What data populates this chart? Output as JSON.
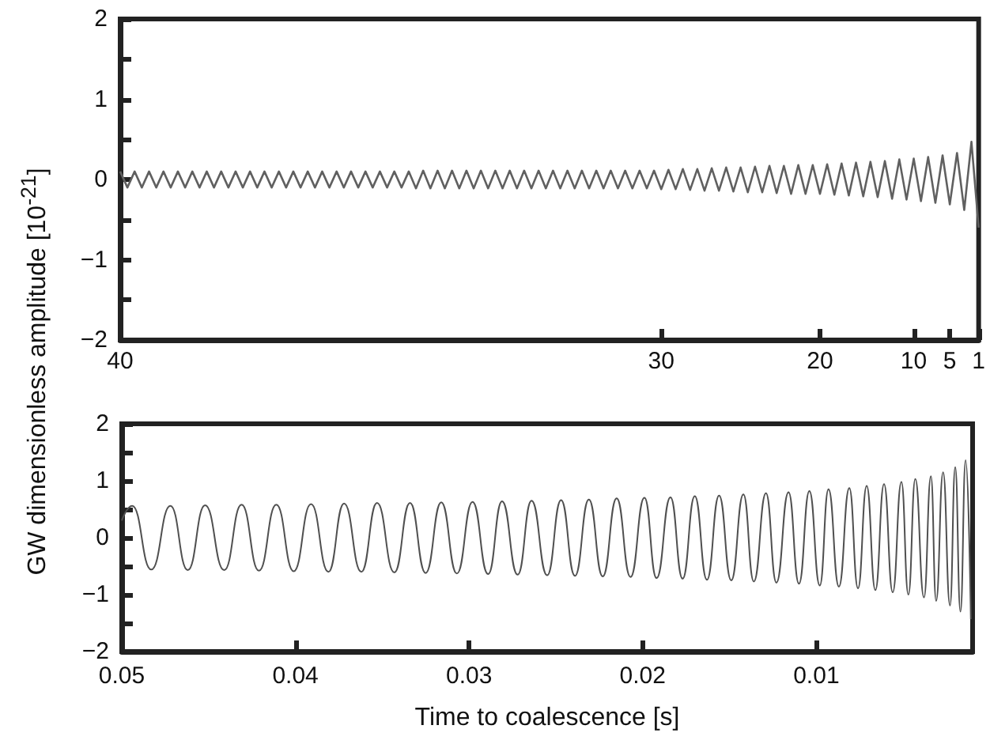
{
  "chart_data": [
    {
      "type": "line",
      "ylabel": "GW dimensionless amplitude [10$^{-21}$]",
      "color": "#606060",
      "categories": [
        "40",
        null,
        null,
        null,
        null,
        null,
        null,
        null,
        null,
        null,
        null,
        null,
        null,
        null,
        null,
        null,
        null,
        null,
        null,
        null,
        null,
        null,
        null,
        null,
        null,
        null,
        null,
        null,
        null,
        null,
        null,
        null,
        null,
        null,
        null,
        null,
        null,
        null,
        null,
        null,
        null,
        null,
        null,
        null,
        null,
        null,
        null,
        null,
        null,
        null,
        null,
        null,
        null,
        null,
        null,
        null,
        null,
        null,
        null,
        null,
        null,
        null,
        null,
        null,
        null,
        null,
        null,
        null,
        null,
        null,
        null,
        null,
        null,
        null,
        null,
        "30",
        null,
        null,
        null,
        null,
        null,
        null,
        null,
        null,
        null,
        null,
        null,
        null,
        null,
        null,
        null,
        null,
        null,
        null,
        null,
        null,
        null,
        "20",
        null,
        null,
        null,
        null,
        null,
        null,
        null,
        null,
        null,
        null,
        null,
        null,
        "10",
        null,
        null,
        null,
        null,
        "5",
        null,
        null,
        null,
        "1"
      ],
      "values": [
        0.1,
        -0.1,
        0.1,
        -0.1,
        0.1,
        -0.1,
        0.1,
        -0.1,
        0.1,
        -0.1,
        0.1,
        -0.1,
        0.1,
        -0.1,
        0.1,
        -0.1,
        0.1,
        -0.1,
        0.1,
        -0.1,
        0.1,
        -0.1,
        0.1,
        -0.1,
        0.1,
        -0.1,
        0.1,
        -0.1,
        0.1,
        -0.1,
        0.1,
        -0.1,
        0.1,
        -0.1,
        0.1,
        -0.1,
        0.1,
        -0.1,
        0.1,
        -0.1,
        0.1,
        -0.11,
        0.11,
        -0.11,
        0.11,
        -0.11,
        0.11,
        -0.11,
        0.11,
        -0.11,
        0.11,
        -0.11,
        0.11,
        -0.11,
        0.11,
        -0.11,
        0.11,
        -0.11,
        0.11,
        -0.11,
        0.11,
        -0.11,
        0.11,
        -0.11,
        0.11,
        -0.11,
        0.11,
        -0.11,
        0.11,
        -0.11,
        0.11,
        -0.11,
        0.11,
        -0.11,
        0.11,
        -0.12,
        0.12,
        -0.12,
        0.13,
        -0.13,
        0.13,
        -0.14,
        0.14,
        -0.14,
        0.15,
        -0.15,
        0.15,
        -0.16,
        0.16,
        -0.16,
        0.17,
        -0.17,
        0.17,
        -0.18,
        0.18,
        -0.18,
        0.18,
        -0.18,
        0.19,
        -0.19,
        0.2,
        -0.2,
        0.21,
        -0.21,
        0.22,
        -0.22,
        0.23,
        -0.24,
        0.25,
        -0.25,
        0.26,
        -0.27,
        0.28,
        -0.29,
        0.3,
        -0.31,
        0.33,
        -0.38,
        0.47,
        -0.6
      ],
      "ylim": [
        -2,
        2
      ],
      "yticks": [
        {
          "value": -2,
          "label": "−2"
        },
        {
          "value": -1.5,
          "label": null
        },
        {
          "value": -1,
          "label": "−1"
        },
        {
          "value": -0.5,
          "label": null
        },
        0,
        {
          "value": 0.5,
          "label": null
        },
        1,
        {
          "value": 1.5,
          "label": null
        },
        2
      ]
    },
    {
      "type": "line",
      "xlabel": "Time to coalescence [s]",
      "color": "#505050",
      "x": [
        0.05,
        0.0494,
        0.0483,
        0.0472,
        0.0462,
        0.0452,
        0.0441,
        0.0431,
        0.0421,
        0.0411,
        0.0401,
        0.0391,
        0.0381,
        0.0372,
        0.0362,
        0.0353,
        0.0343,
        0.0334,
        0.0325,
        0.0316,
        0.0307,
        0.0298,
        0.0289,
        0.0281,
        0.0272,
        0.0264,
        0.0255,
        0.0247,
        0.0239,
        0.0231,
        0.0223,
        0.0215,
        0.0207,
        0.0199,
        0.0192,
        0.0184,
        0.0177,
        0.017,
        0.0163,
        0.0156,
        0.0149,
        0.0142,
        0.0136,
        0.0129,
        0.0123,
        0.0116,
        0.011,
        0.0104,
        0.0098,
        0.0093,
        0.0087,
        0.0081,
        0.0076,
        0.0071,
        0.0066,
        0.0061,
        0.0056,
        0.0051,
        0.0047,
        0.0043,
        0.0038,
        0.0034,
        0.0031,
        0.0027,
        0.0023,
        0.002,
        0.0017,
        0.0014,
        0.0011
      ],
      "values": [
        0.3,
        0.56,
        -0.56,
        0.56,
        -0.57,
        0.57,
        -0.57,
        0.58,
        -0.58,
        0.58,
        -0.59,
        0.59,
        -0.6,
        0.6,
        -0.6,
        0.61,
        -0.61,
        0.61,
        -0.62,
        0.62,
        -0.63,
        0.63,
        -0.64,
        0.64,
        -0.65,
        0.65,
        -0.66,
        0.66,
        -0.67,
        0.67,
        -0.68,
        0.69,
        -0.69,
        0.7,
        -0.71,
        0.71,
        -0.72,
        0.73,
        -0.74,
        0.74,
        -0.75,
        0.76,
        -0.77,
        0.78,
        -0.79,
        0.8,
        -0.81,
        0.82,
        -0.84,
        0.85,
        -0.86,
        0.87,
        -0.89,
        0.91,
        -0.92,
        0.94,
        -0.96,
        0.98,
        -1.0,
        1.03,
        -1.05,
        1.08,
        -1.11,
        1.15,
        -1.19,
        1.24,
        -1.3,
        1.36,
        -1.43
      ],
      "xlim": [
        0.05,
        0.001
      ],
      "xticks": [
        0.05,
        0.04,
        0.03,
        0.02,
        0.01
      ],
      "ylim": [
        -2,
        2
      ],
      "yticks": [
        {
          "value": -2,
          "label": "−2"
        },
        {
          "value": -1.5,
          "label": null
        },
        {
          "value": -1,
          "label": "−1"
        },
        {
          "value": -0.5,
          "label": null
        },
        0,
        {
          "value": 0.5,
          "label": null
        },
        1,
        {
          "value": 1.5,
          "label": null
        },
        2
      ]
    }
  ]
}
